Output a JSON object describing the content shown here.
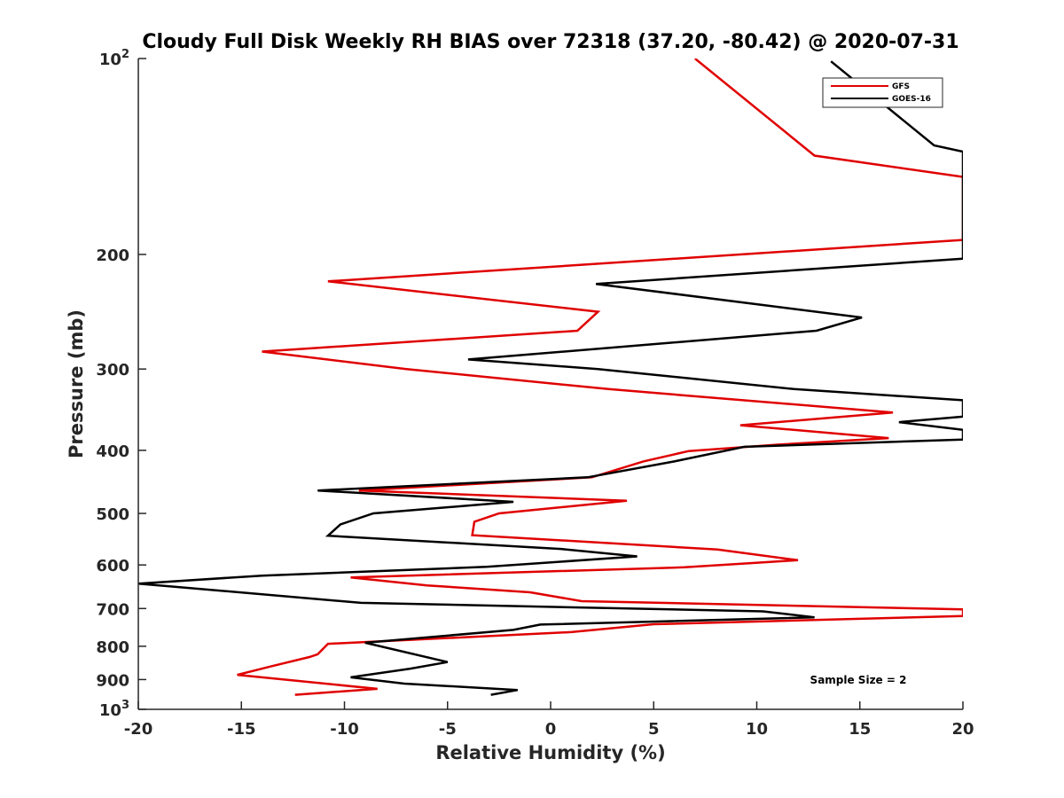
{
  "chart_data": {
    "type": "line",
    "title": "Cloudy Full Disk Weekly RH BIAS over 72318 (37.20, -80.42) @ 2020-07-31",
    "xlabel": "Relative Humidity (%)",
    "ylabel": "Pressure (mb)",
    "xlim": [
      -20,
      20
    ],
    "ylim": [
      100,
      1000
    ],
    "yscale": "log",
    "y_reversed": true,
    "grid": false,
    "x_ticks": [
      -20,
      -15,
      -10,
      -5,
      0,
      5,
      10,
      15,
      20
    ],
    "x_tick_labels": [
      "-20",
      "-15",
      "-10",
      "-5",
      "0",
      "5",
      "10",
      "15",
      "20"
    ],
    "y_ticks": [
      {
        "value": 100,
        "base": "10",
        "exp": "2"
      },
      {
        "value": 200,
        "label": "200"
      },
      {
        "value": 300,
        "label": "300"
      },
      {
        "value": 400,
        "label": "400"
      },
      {
        "value": 500,
        "label": "500"
      },
      {
        "value": 600,
        "label": "600"
      },
      {
        "value": 700,
        "label": "700"
      },
      {
        "value": 800,
        "label": "800"
      },
      {
        "value": 900,
        "label": "900"
      },
      {
        "value": 1000,
        "base": "10",
        "exp": "3"
      }
    ],
    "legend_position": "top-right",
    "annotation": "Sample Size = 2",
    "series": [
      {
        "name": "GFS",
        "color": "#e00000",
        "points": [
          [
            7.0,
            100
          ],
          [
            12.8,
            141
          ],
          [
            20,
            152
          ],
          [
            20,
            190
          ],
          [
            -10.8,
            220
          ],
          [
            2.3,
            245
          ],
          [
            1.3,
            262
          ],
          [
            -14.0,
            282
          ],
          [
            -7.0,
            300
          ],
          [
            2.8,
            322
          ],
          [
            16.6,
            350
          ],
          [
            9.2,
            366
          ],
          [
            16.4,
            383
          ],
          [
            11.0,
            392
          ],
          [
            6.7,
            401
          ],
          [
            4.5,
            416
          ],
          [
            2.0,
            440
          ],
          [
            -9.3,
            461
          ],
          [
            3.7,
            478
          ],
          [
            -2.5,
            500
          ],
          [
            -3.7,
            515
          ],
          [
            -3.8,
            540
          ],
          [
            8.1,
            568
          ],
          [
            12.0,
            590
          ],
          [
            6.5,
            605
          ],
          [
            -9.7,
            627
          ],
          [
            -6.0,
            645
          ],
          [
            -1.0,
            661
          ],
          [
            1.5,
            682
          ],
          [
            20,
            702
          ],
          [
            20,
            719
          ],
          [
            5.0,
            740
          ],
          [
            1.0,
            761
          ],
          [
            -10.8,
            793
          ],
          [
            -11.3,
            823
          ],
          [
            -11.7,
            831
          ],
          [
            -13.5,
            858
          ],
          [
            -15.2,
            885
          ],
          [
            -8.4,
            930
          ],
          [
            -12.4,
            950
          ]
        ]
      },
      {
        "name": "GOES-16",
        "color": "#000000",
        "points": [
          [
            13.6,
            101
          ],
          [
            18.6,
            136
          ],
          [
            20,
            139
          ],
          [
            20,
            203
          ],
          [
            2.2,
            222
          ],
          [
            15.1,
            250
          ],
          [
            12.9,
            262
          ],
          [
            -4.0,
            290
          ],
          [
            2.3,
            300
          ],
          [
            11.8,
            322
          ],
          [
            20,
            335
          ],
          [
            20,
            355
          ],
          [
            16.9,
            362
          ],
          [
            20,
            372
          ],
          [
            20,
            385
          ],
          [
            9.4,
            395
          ],
          [
            6.0,
            416
          ],
          [
            1.8,
            440
          ],
          [
            -11.3,
            461
          ],
          [
            -1.8,
            480
          ],
          [
            -8.6,
            500
          ],
          [
            -10.2,
            520
          ],
          [
            -10.8,
            541
          ],
          [
            0.5,
            567
          ],
          [
            4.2,
            582
          ],
          [
            -3.1,
            604
          ],
          [
            -14.0,
            623
          ],
          [
            -20.0,
            641
          ],
          [
            -9.2,
            686
          ],
          [
            10.3,
            707
          ],
          [
            12.8,
            722
          ],
          [
            -0.5,
            741
          ],
          [
            -1.8,
            755
          ],
          [
            -9.0,
            790
          ],
          [
            -5.0,
            846
          ],
          [
            -6.8,
            866
          ],
          [
            -9.7,
            893
          ],
          [
            -7.1,
            913
          ],
          [
            -1.6,
            934
          ],
          [
            -2.9,
            950
          ]
        ]
      }
    ]
  }
}
